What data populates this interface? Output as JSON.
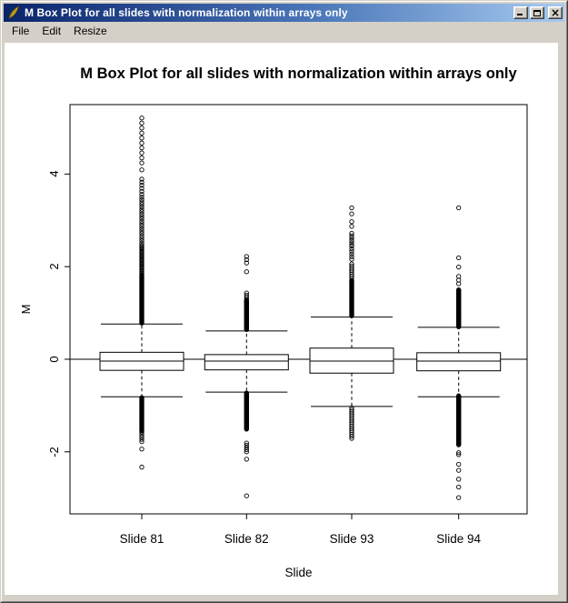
{
  "window": {
    "title": "M Box Plot for all slides with normalization within arrays only",
    "buttons": {
      "minimize": "minimize",
      "maximize": "maximize",
      "close": "×"
    }
  },
  "menu": {
    "items": [
      "File",
      "Edit",
      "Resize"
    ]
  },
  "colors": {
    "titlebar_from": "#0a246a",
    "titlebar_to": "#a6caf0",
    "chrome": "#d4d0c8",
    "canvas": "#ffffff",
    "plot_ink": "#000000"
  },
  "chart_data": {
    "type": "boxplot",
    "title": "M Box Plot for all slides with normalization within arrays only",
    "xlabel": "Slide",
    "ylabel": "M",
    "ylim": [
      -3.34,
      5.5
    ],
    "yticks": [
      -2,
      0,
      2,
      4
    ],
    "reference_line": 0,
    "grid": false,
    "categories": [
      "Slide 81",
      "Slide 82",
      "Slide 93",
      "Slide 94"
    ],
    "boxes": [
      {
        "label": "Slide 81",
        "q1": -0.24,
        "median": -0.04,
        "q3": 0.15,
        "whisker_low": -0.81,
        "whisker_high": 0.76,
        "outliers_high": [
          [
            0.78,
            1.8,
            80
          ],
          [
            1.82,
            2.46,
            26
          ],
          [
            2.51,
            3.5,
            20
          ],
          [
            3.56,
            3.89,
            6
          ],
          [
            4.09,
            4.09,
            1
          ],
          [
            4.24,
            5.21,
            10
          ]
        ],
        "outliers_low": [
          [
            -1.55,
            -0.83,
            55
          ],
          [
            -1.78,
            -1.58,
            5
          ],
          [
            -1.94,
            -1.94,
            1
          ],
          [
            -2.33,
            -2.33,
            1
          ]
        ]
      },
      {
        "label": "Slide 82",
        "q1": -0.23,
        "median": -0.04,
        "q3": 0.1,
        "whisker_low": -0.71,
        "whisker_high": 0.61,
        "outliers_high": [
          [
            0.64,
            1.27,
            50
          ],
          [
            1.25,
            1.43,
            5
          ],
          [
            1.89,
            1.89,
            1
          ],
          [
            2.08,
            2.22,
            3
          ]
        ],
        "outliers_low": [
          [
            -1.51,
            -0.73,
            60
          ],
          [
            -2.0,
            -1.81,
            5
          ],
          [
            -2.16,
            -2.16,
            1
          ],
          [
            -2.95,
            -2.95,
            1
          ]
        ]
      },
      {
        "label": "Slide 93",
        "q1": -0.3,
        "median": -0.04,
        "q3": 0.24,
        "whisker_low": -1.02,
        "whisker_high": 0.91,
        "outliers_high": [
          [
            0.94,
            1.7,
            60
          ],
          [
            1.7,
            2.06,
            9
          ],
          [
            2.16,
            2.45,
            6
          ],
          [
            2.46,
            2.72,
            6
          ],
          [
            2.87,
            2.97,
            2
          ],
          [
            3.14,
            3.14,
            1
          ],
          [
            3.27,
            3.27,
            1
          ]
        ],
        "outliers_low": [
          [
            -1.71,
            -1.05,
            16
          ]
        ]
      },
      {
        "label": "Slide 94",
        "q1": -0.25,
        "median": -0.04,
        "q3": 0.14,
        "whisker_low": -0.81,
        "whisker_high": 0.69,
        "outliers_high": [
          [
            0.7,
            1.5,
            62
          ],
          [
            1.63,
            1.79,
            3
          ],
          [
            1.99,
            1.99,
            1
          ],
          [
            2.19,
            2.19,
            1
          ],
          [
            3.27,
            3.27,
            1
          ]
        ],
        "outliers_low": [
          [
            -1.85,
            -0.79,
            80
          ],
          [
            -2.06,
            -2.02,
            2
          ],
          [
            -2.27,
            -2.27,
            1
          ],
          [
            -2.4,
            -2.4,
            1
          ],
          [
            -2.59,
            -2.59,
            1
          ],
          [
            -2.76,
            -2.76,
            1
          ],
          [
            -2.99,
            -2.99,
            1
          ]
        ]
      }
    ]
  }
}
